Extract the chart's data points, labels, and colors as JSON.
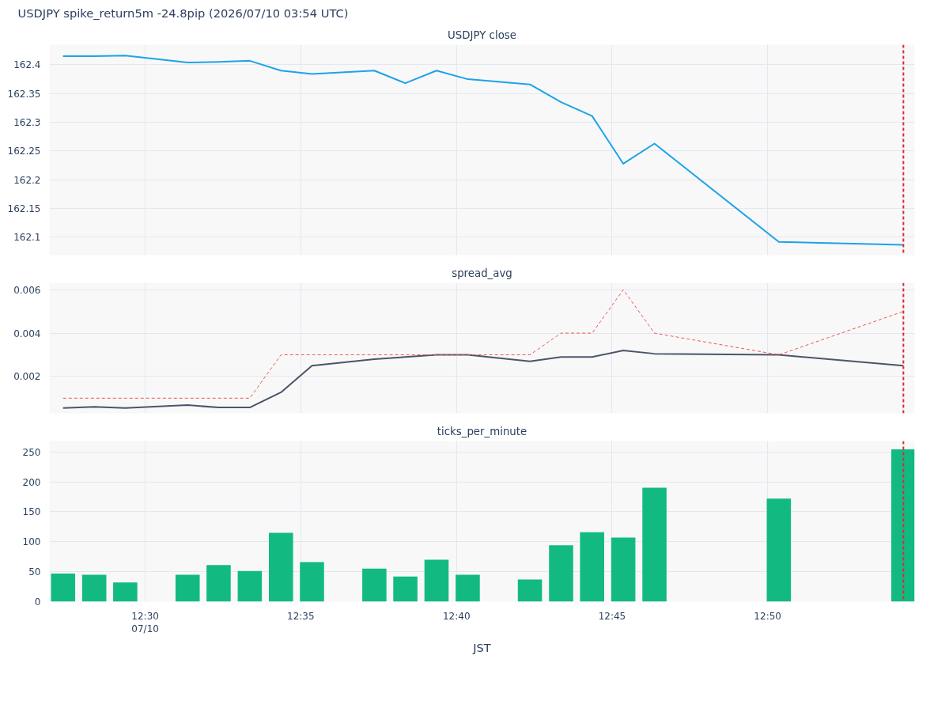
{
  "chart_data": [
    {
      "type": "line",
      "title": "USDJPY spike_return5m -24.8pip (2026/07/10 03:54 UTC)",
      "subtitle": "USDJPY close",
      "x": [
        12.456,
        12.4727,
        12.4893,
        12.5227,
        12.5393,
        12.556,
        12.5727,
        12.5893,
        12.6227,
        12.6393,
        12.656,
        12.6727,
        12.706,
        12.7227,
        12.7393,
        12.756,
        12.7727,
        12.8393,
        12.906
      ],
      "series": [
        {
          "color": "#1ca3e8",
          "values": [
            162.415,
            162.415,
            162.416,
            162.404,
            162.405,
            162.407,
            162.39,
            162.384,
            162.39,
            162.368,
            162.39,
            162.375,
            162.366,
            162.335,
            162.311,
            162.228,
            162.263,
            162.092,
            162.087
          ]
        }
      ],
      "xlim": [
        12.4487,
        12.912
      ],
      "xticks": [
        {
          "value": 12.5,
          "label": null
        },
        {
          "value": 12.5833,
          "label": null
        },
        {
          "value": 12.6667,
          "label": null
        },
        {
          "value": 12.75,
          "label": null
        },
        {
          "value": 12.8333,
          "label": null
        }
      ],
      "ylim": [
        162.069,
        162.435
      ],
      "yticks": [
        162.1,
        162.15,
        162.2,
        162.25,
        162.3,
        162.35,
        162.4
      ],
      "grid": true,
      "tick_labels": "y",
      "line_style": "solid",
      "ref_lines": [
        {
          "axis": "x",
          "value": 12.906,
          "color": "#e0282e",
          "line_style": "dashed"
        }
      ]
    },
    {
      "type": "line",
      "title": "spread_avg",
      "x": [
        12.456,
        12.4727,
        12.4893,
        12.5227,
        12.5393,
        12.556,
        12.5727,
        12.5893,
        12.6227,
        12.6393,
        12.656,
        12.6727,
        12.706,
        12.7227,
        12.7393,
        12.756,
        12.7727,
        12.8393,
        12.906
      ],
      "series": [
        {
          "color": "#4b5568",
          "line_style": "solid",
          "values": [
            0.00055,
            0.0006,
            0.00055,
            0.00068,
            0.00057,
            0.00057,
            0.00127,
            0.0025,
            0.0028,
            0.0029,
            0.003,
            0.003,
            0.0027,
            0.0029,
            0.0029,
            0.0032,
            0.00305,
            0.003,
            0.0025
          ]
        },
        {
          "color": "#f0554f",
          "line_style": "dashed",
          "values": [
            0.001,
            0.001,
            0.001,
            0.001,
            0.001,
            0.001,
            0.003,
            0.003,
            0.003,
            0.003,
            0.003,
            0.003,
            0.003,
            0.004,
            0.004,
            0.006,
            0.004,
            0.003,
            0.005
          ]
        }
      ],
      "xlim": [
        12.4487,
        12.912
      ],
      "xticks": [
        {
          "value": 12.5,
          "label": null
        },
        {
          "value": 12.5833,
          "label": null
        },
        {
          "value": 12.6667,
          "label": null
        },
        {
          "value": 12.75,
          "label": null
        },
        {
          "value": 12.8333,
          "label": null
        }
      ],
      "ylim": [
        0.0003,
        0.00632
      ],
      "yticks": [
        0.002,
        0.004,
        0.006
      ],
      "grid": true,
      "tick_labels": "y",
      "ref_lines": [
        {
          "axis": "x",
          "value": 12.906,
          "color": "#e0282e",
          "line_style": "dashed"
        }
      ]
    },
    {
      "type": "bar",
      "title": "ticks_per_minute",
      "xlabel": "JST",
      "x": [
        12.456,
        12.4727,
        12.4893,
        12.5227,
        12.5393,
        12.556,
        12.5727,
        12.5893,
        12.6227,
        12.6393,
        12.656,
        12.6727,
        12.706,
        12.7227,
        12.7393,
        12.756,
        12.7727,
        12.8393,
        12.906
      ],
      "series": [
        {
          "color": "#12ba82",
          "values": [
            47,
            45,
            32,
            45,
            61,
            51,
            115,
            66,
            55,
            42,
            70,
            45,
            37,
            94,
            116,
            107,
            190,
            172,
            254
          ]
        }
      ],
      "xlim": [
        12.4487,
        12.912
      ],
      "xticks": [
        {
          "value": 12.5,
          "label": "12:30\n07/10"
        },
        {
          "value": 12.5833,
          "label": "12:35"
        },
        {
          "value": 12.6667,
          "label": "12:40"
        },
        {
          "value": 12.75,
          "label": "12:45"
        },
        {
          "value": 12.8333,
          "label": "12:50"
        }
      ],
      "ylim": [
        0,
        268
      ],
      "yticks": [
        0,
        50,
        100,
        150,
        200,
        250
      ],
      "grid": true,
      "ref_lines": [
        {
          "axis": "x",
          "value": 12.906,
          "color": "#e0282e",
          "line_style": "dashed"
        }
      ]
    }
  ]
}
